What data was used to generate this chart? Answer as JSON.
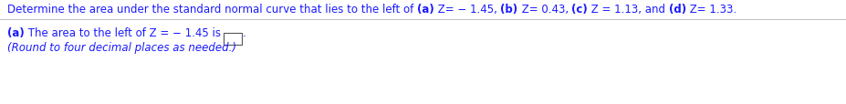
{
  "line1_segments": [
    {
      "text": "Determine the area under the standard normal curve that lies to the left of ",
      "bold": false,
      "color": "#1a1aff"
    },
    {
      "text": "(a)",
      "bold": true,
      "color": "#1a1aff"
    },
    {
      "text": " Z= − 1.45, ",
      "bold": false,
      "color": "#1a1aff"
    },
    {
      "text": "(b)",
      "bold": true,
      "color": "#1a1aff"
    },
    {
      "text": " Z= 0.43, ",
      "bold": false,
      "color": "#1a1aff"
    },
    {
      "text": "(c)",
      "bold": true,
      "color": "#1a1aff"
    },
    {
      "text": " Z = 1.13, and ",
      "bold": false,
      "color": "#1a1aff"
    },
    {
      "text": "(d)",
      "bold": true,
      "color": "#1a1aff"
    },
    {
      "text": " Z= 1.33.",
      "bold": false,
      "color": "#1a1aff"
    }
  ],
  "line2_segments": [
    {
      "text": "(a)",
      "bold": true,
      "color": "#1a1aff"
    },
    {
      "text": " The area to the left of Z = − 1.45 is",
      "bold": false,
      "color": "#1a1aff"
    }
  ],
  "line3": "(Round to four decimal places as needed.)",
  "line3_color": "#1a1aff",
  "line3_italic": true,
  "background_color": "#ffffff",
  "divider_color": "#c0c0c0",
  "box_color": "#555555",
  "font_size": 8.5,
  "figwidth": 9.28,
  "figheight": 1.15,
  "dpi": 100
}
